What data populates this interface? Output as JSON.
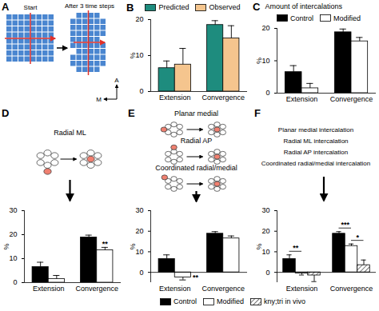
{
  "panels": {
    "A": {
      "label": "A",
      "titles": [
        "Start",
        "After 3 time steps"
      ],
      "axis_labels": [
        "A",
        "M"
      ]
    },
    "D": {
      "texts": [
        "Radial ML"
      ]
    },
    "E": {
      "texts": [
        "Planar medial",
        "Radial AP",
        "Coordinated radial/medial"
      ]
    },
    "F": {
      "texts": [
        "Planar medial intercalation",
        "Radial ML intercalation",
        "Radial AP intercalation",
        "Coordinated radial/medial intercalation"
      ]
    }
  },
  "chart_data": [
    {
      "panel": "B",
      "type": "bar",
      "categories": [
        "Extension",
        "Convergence"
      ],
      "series": [
        {
          "name": "Predicted",
          "color": "#1e8c7e",
          "values": [
            6.5,
            18.5
          ],
          "errors": [
            2,
            1.2
          ]
        },
        {
          "name": "Observed",
          "color": "#f5c58e",
          "values": [
            7.5,
            14.8
          ],
          "errors": [
            4.5,
            3.5
          ]
        }
      ],
      "y_label": "%",
      "ylim": [
        0,
        20
      ],
      "yticks": [
        0,
        10,
        20
      ],
      "legend": "top"
    },
    {
      "panel": "C",
      "type": "bar",
      "title": "Amount of intercalations",
      "categories": [
        "Extension",
        "Convergence"
      ],
      "series": [
        {
          "name": "Control",
          "color": "#000000",
          "values": [
            6.5,
            18.8
          ],
          "errors": [
            2,
            1
          ]
        },
        {
          "name": "Modified",
          "color": "#ffffff",
          "values": [
            1.5,
            16
          ],
          "errors": [
            1.5,
            1.2
          ]
        }
      ],
      "y_label": "%",
      "ylim": [
        0,
        20
      ],
      "yticks": [
        0,
        10,
        20
      ],
      "legend": "top"
    },
    {
      "panel": "D",
      "type": "bar",
      "categories": [
        "Extension",
        "Convergence"
      ],
      "series": [
        {
          "name": "Control",
          "color": "#000000",
          "values": [
            6.5,
            18.8
          ],
          "errors": [
            2,
            1
          ]
        },
        {
          "name": "Modified",
          "color": "#ffffff",
          "values": [
            1.5,
            13.5
          ],
          "errors": [
            1.5,
            1.2
          ]
        }
      ],
      "annotations": [
        {
          "text": "**",
          "category": "Convergence",
          "series": [
            "Modified"
          ]
        }
      ],
      "y_label": "%",
      "ylim": [
        0,
        30
      ],
      "yticks": [
        0,
        10,
        20,
        30
      ]
    },
    {
      "panel": "E",
      "type": "bar",
      "categories": [
        "Extension",
        "Convergence"
      ],
      "series": [
        {
          "name": "Control",
          "color": "#000000",
          "values": [
            6.5,
            18.8
          ],
          "errors": [
            2,
            1
          ]
        },
        {
          "name": "Modified",
          "color": "#ffffff",
          "values": [
            -2.5,
            16.5
          ],
          "errors": [
            1.2,
            1.2
          ]
        }
      ],
      "annotations": [
        {
          "text": "**",
          "category": "Extension",
          "series": [
            "Modified"
          ]
        }
      ],
      "y_label": "%",
      "ylim": [
        -5,
        30
      ],
      "yticks": [
        0,
        10,
        20,
        30
      ]
    },
    {
      "panel": "F",
      "type": "bar",
      "categories": [
        "Extension",
        "Convergence"
      ],
      "series": [
        {
          "name": "Control",
          "color": "#000000",
          "values": [
            6.5,
            18.8
          ],
          "errors": [
            2,
            1
          ]
        },
        {
          "name": "Modified",
          "color": "#ffffff",
          "values": [
            -0.5,
            12.8
          ],
          "errors": [
            0.8,
            1
          ]
        },
        {
          "name": "kny;tri in vivo",
          "color": "#555555",
          "line_style": "hatched",
          "values": [
            -1.5,
            3.5
          ],
          "errors": [
            3,
            2.5
          ]
        }
      ],
      "annotations": [
        {
          "text": "**",
          "category": "Extension",
          "series": [
            "Control",
            "Modified"
          ]
        },
        {
          "text": "***",
          "category": "Convergence",
          "series": [
            "Control",
            "Modified"
          ]
        },
        {
          "text": "*",
          "category": "Convergence",
          "series": [
            "Modified",
            "kny;tri in vivo"
          ]
        }
      ],
      "y_label": "%",
      "ylim": [
        -5,
        30
      ],
      "yticks": [
        0,
        10,
        20,
        30
      ],
      "legend": "bottom"
    }
  ]
}
